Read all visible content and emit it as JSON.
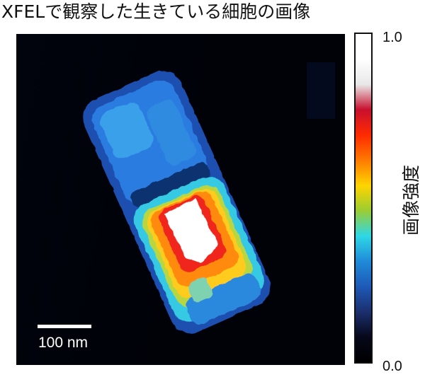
{
  "title": "XFELで観察した生きている細胞の画像",
  "scale_bar": {
    "label": "100 nm"
  },
  "colorbar": {
    "label": "画像強度",
    "max_label": "1.0",
    "min_label": "0.0",
    "stops": [
      "#ffffff",
      "#ffffff",
      "#e8e8e8",
      "#c8102e",
      "#ff2a00",
      "#ff7a00",
      "#ffd400",
      "#9acd32",
      "#2ed8e6",
      "#1f8bd9",
      "#1e5ab8",
      "#1c2f6e",
      "#06081a",
      "#000000"
    ]
  },
  "colors": {
    "background": "#000208",
    "title_text": "#111111",
    "scale_text": "#ffffff"
  },
  "icons": {
    "image": "cell-intensity-map"
  }
}
